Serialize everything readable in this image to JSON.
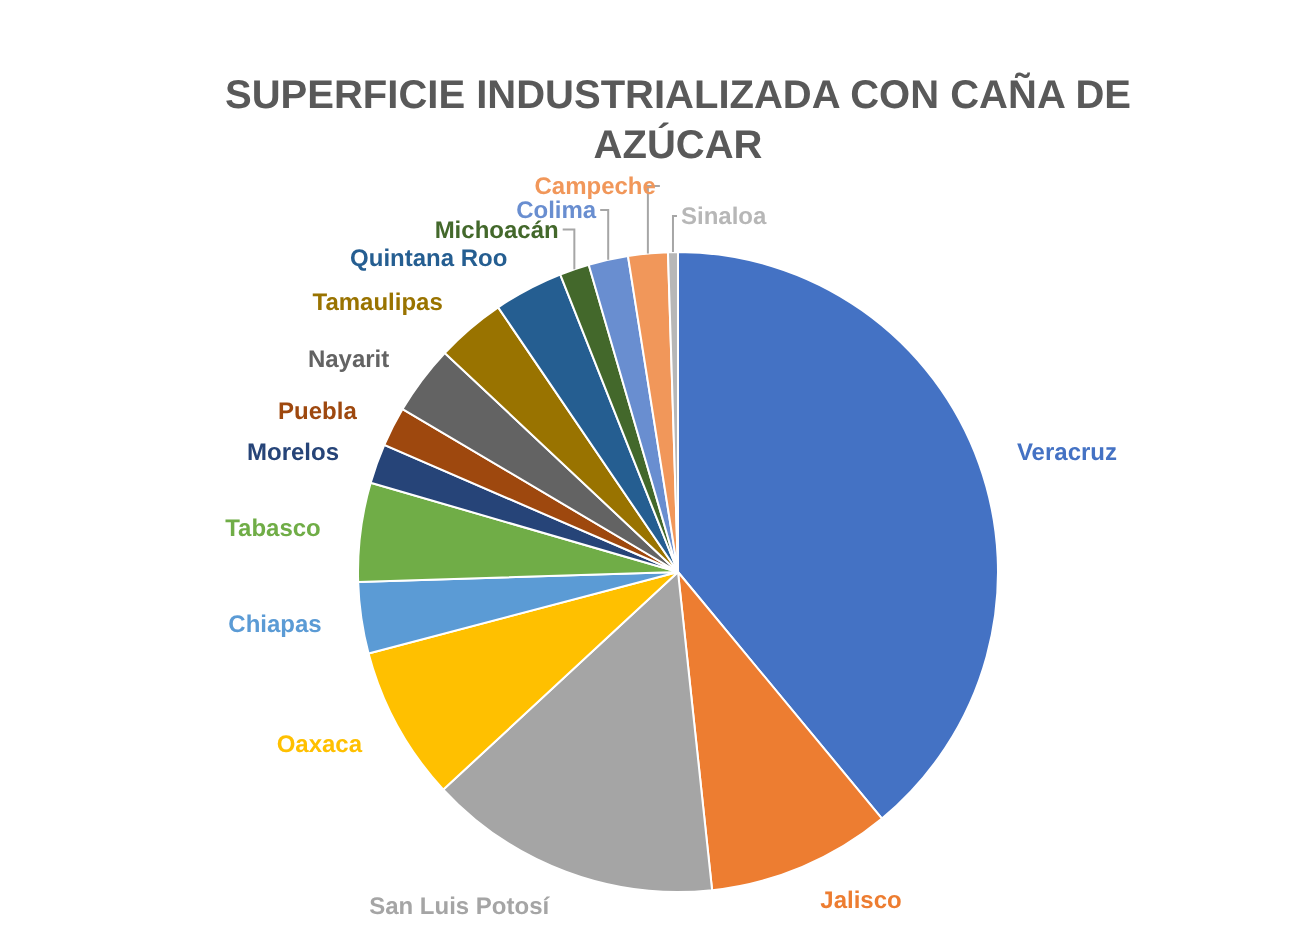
{
  "chart_data": {
    "type": "pie",
    "title": "SUPERFICIE INDUSTRIALIZADA CON CAÑA DE AZÚCAR",
    "categories": [
      "Veracruz",
      "Jalisco",
      "San Luis Potosí",
      "Oaxaca",
      "Chiapas",
      "Tabasco",
      "Morelos",
      "Puebla",
      "Nayarit",
      "Tamaulipas",
      "Quintana Roo",
      "Michoacán",
      "Colima",
      "Campeche",
      "Sinaloa"
    ],
    "values": [
      39,
      9.3,
      14.8,
      7.8,
      3.6,
      5,
      2,
      2,
      3.5,
      3.5,
      3.5,
      1.5,
      2,
      2,
      0.5
    ],
    "colors": [
      "#4472c4",
      "#ed7d31",
      "#a5a5a5",
      "#ffc000",
      "#5b9bd5",
      "#70ad47",
      "#264478",
      "#9e480e",
      "#636363",
      "#997300",
      "#255e91",
      "#43682b",
      "#698ed0",
      "#f1975a",
      "#b7b7b7"
    ],
    "data_labels": false
  }
}
